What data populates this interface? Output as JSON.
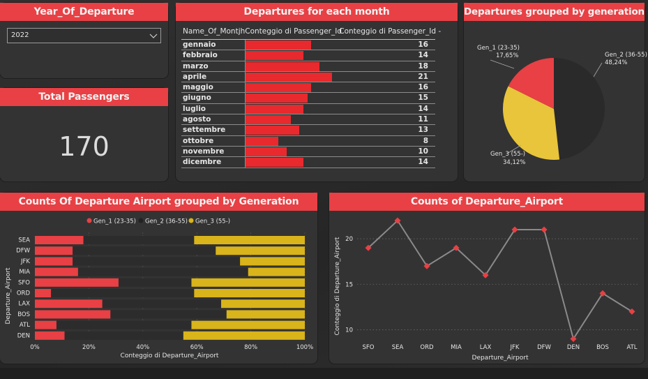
{
  "year_slicer": {
    "title": "Year_Of_Departure",
    "selected": "2022"
  },
  "total_passengers": {
    "title": "Total Passengers",
    "value": "170"
  },
  "month_table": {
    "title": "Departures for each month",
    "headers": [
      "Name_Of_Montjh",
      "Conteggio di Passenger_Id",
      "Conteggio di Passenger_Id -"
    ],
    "rows": [
      {
        "month": "gennaio",
        "count": 16
      },
      {
        "month": "febbraio",
        "count": 14
      },
      {
        "month": "marzo",
        "count": 18
      },
      {
        "month": "aprile",
        "count": 21
      },
      {
        "month": "maggio",
        "count": 16
      },
      {
        "month": "giugno",
        "count": 15
      },
      {
        "month": "luglio",
        "count": 14
      },
      {
        "month": "agosto",
        "count": 11
      },
      {
        "month": "settembre",
        "count": 13
      },
      {
        "month": "ottobre",
        "count": 8
      },
      {
        "month": "novembre",
        "count": 10
      },
      {
        "month": "dicembre",
        "count": 14
      }
    ],
    "bar_color": "#e8292d"
  },
  "pie": {
    "title": "Departures grouped by generation",
    "labels": [
      {
        "name": "Gen_1 (23-35)",
        "pct": "17,65%"
      },
      {
        "name": "Gen_2 (36-55)",
        "pct": "48,24%"
      },
      {
        "name": "Gen_3 (55-)",
        "pct": "34,12%"
      }
    ]
  },
  "stacked": {
    "title": "Counts Of Departure Airport grouped by Generation",
    "ylabel": "Departure_Airport",
    "xlabel": "Conteggio di Departure_Airport",
    "xticks": [
      "0%",
      "20%",
      "40%",
      "60%",
      "80%",
      "100%"
    ],
    "legend": [
      "Gen_1 (23-35)",
      "Gen_2 (36-55)",
      "Gen_3 (55-)"
    ]
  },
  "line": {
    "title": "Counts of Departure_Airport",
    "ylabel": "Conteggio di Departure_Airport",
    "xlabel": "Departure_Airport",
    "yticks": [
      "20",
      "15",
      "10"
    ]
  },
  "chart_data": [
    {
      "type": "pie",
      "title": "Departures grouped by generation",
      "categories": [
        "Gen_1 (23-35)",
        "Gen_2 (36-55)",
        "Gen_3 (55-)"
      ],
      "values": [
        17.65,
        48.24,
        34.12
      ],
      "colors": [
        "#e84044",
        "#2a2a2a",
        "#e8c53a"
      ]
    },
    {
      "type": "bar",
      "title": "Counts Of Departure Airport grouped by Generation",
      "orientation": "horizontal-stacked-100",
      "xlabel": "Conteggio di Departure_Airport",
      "ylabel": "Departure_Airport",
      "categories": [
        "SEA",
        "DFW",
        "JFK",
        "MIA",
        "SFO",
        "ORD",
        "LAX",
        "BOS",
        "ATL",
        "DEN"
      ],
      "xlim": [
        0,
        100
      ],
      "series": [
        {
          "name": "Gen_1 (23-35)",
          "color": "#e84044",
          "values": [
            18,
            14,
            14,
            16,
            31,
            6,
            25,
            28,
            8,
            11
          ]
        },
        {
          "name": "Gen_2 (36-55)",
          "color": "#2c2c2c",
          "values": [
            41,
            53,
            62,
            63,
            27,
            53,
            44,
            43,
            50,
            44
          ]
        },
        {
          "name": "Gen_3 (55-)",
          "color": "#d9b41a",
          "values": [
            41,
            33,
            24,
            21,
            42,
            41,
            31,
            29,
            42,
            45
          ]
        }
      ],
      "legend": "top-center"
    },
    {
      "type": "line",
      "title": "Counts of Departure_Airport",
      "xlabel": "Departure_Airport",
      "ylabel": "Conteggio di Departure_Airport",
      "categories": [
        "SFO",
        "SEA",
        "ORD",
        "MIA",
        "LAX",
        "JFK",
        "DFW",
        "DEN",
        "BOS",
        "ATL"
      ],
      "values": [
        19,
        22,
        17,
        19,
        16,
        21,
        21,
        9,
        14,
        12
      ],
      "ylim": [
        8.5,
        22
      ],
      "grid": true,
      "line_color": "#8a8a8a",
      "marker_color": "#e84044"
    }
  ]
}
